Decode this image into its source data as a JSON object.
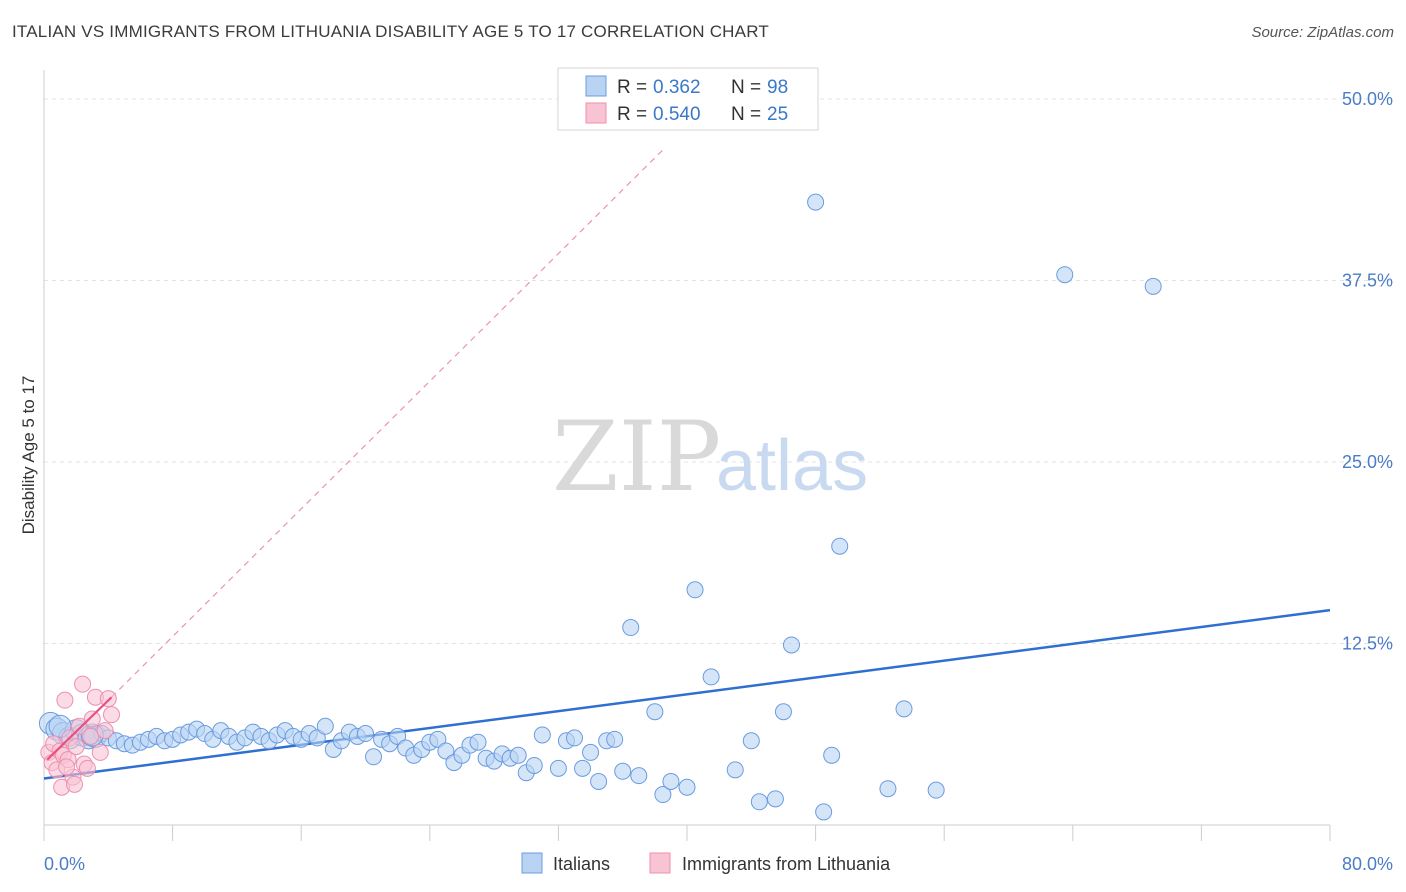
{
  "header": {
    "title": "ITALIAN VS IMMIGRANTS FROM LITHUANIA DISABILITY AGE 5 TO 17 CORRELATION CHART",
    "source": "Source: ZipAtlas.com"
  },
  "watermark": {
    "zip": "ZIP",
    "atlas": "atlas"
  },
  "legend": {
    "rows": [
      {
        "r_label": "R = ",
        "r_value": "0.362",
        "n_label": "N = ",
        "n_value": "98"
      },
      {
        "r_label": "R = ",
        "r_value": "0.540",
        "n_label": "N = ",
        "n_value": "25"
      }
    ]
  },
  "colors": {
    "blue_fill": "#b9d3f3",
    "blue_stroke": "#6a9be0",
    "blue_line": "#2f6fd0",
    "pink_fill": "#f8c3d3",
    "pink_stroke": "#ee8fae",
    "pink_line": "#e8507e",
    "tick_text": "#4a7cc7",
    "grid": "#e3e3e3"
  },
  "chart_data": {
    "type": "scatter",
    "title": "ITALIAN VS IMMIGRANTS FROM LITHUANIA DISABILITY AGE 5 TO 17 CORRELATION CHART",
    "xlabel": "",
    "ylabel": "Disability Age 5 to 17",
    "xlim": [
      0,
      80
    ],
    "ylim": [
      0,
      52
    ],
    "x_tick_labels": [
      "0.0%",
      "80.0%"
    ],
    "y_ticks": [
      12.5,
      25.0,
      37.5,
      50.0
    ],
    "y_tick_labels": [
      "12.5%",
      "25.0%",
      "37.5%",
      "50.0%"
    ],
    "grid": true,
    "legend_position": "top-center",
    "series": [
      {
        "name": "Italians",
        "color": "#b9d3f3",
        "trend": {
          "x": [
            0,
            80
          ],
          "y": [
            3.2,
            14.8
          ]
        },
        "points": [
          [
            0.4,
            7.0
          ],
          [
            0.8,
            6.6
          ],
          [
            1.2,
            6.3
          ],
          [
            1.6,
            6.0
          ],
          [
            2.0,
            6.5
          ],
          [
            2.4,
            6.2
          ],
          [
            2.8,
            6.0
          ],
          [
            3.2,
            6.1
          ],
          [
            3.6,
            6.3
          ],
          [
            4.0,
            6.0
          ],
          [
            4.5,
            5.8
          ],
          [
            5.0,
            5.6
          ],
          [
            5.5,
            5.5
          ],
          [
            6.0,
            5.7
          ],
          [
            6.5,
            5.9
          ],
          [
            7.0,
            6.1
          ],
          [
            7.5,
            5.8
          ],
          [
            8.0,
            5.9
          ],
          [
            8.5,
            6.2
          ],
          [
            9.0,
            6.4
          ],
          [
            9.5,
            6.6
          ],
          [
            10.0,
            6.3
          ],
          [
            10.5,
            5.9
          ],
          [
            11.0,
            6.5
          ],
          [
            11.5,
            6.1
          ],
          [
            12.0,
            5.7
          ],
          [
            12.5,
            6.0
          ],
          [
            13.0,
            6.4
          ],
          [
            13.5,
            6.1
          ],
          [
            14.0,
            5.8
          ],
          [
            14.5,
            6.2
          ],
          [
            15.0,
            6.5
          ],
          [
            15.5,
            6.1
          ],
          [
            16.0,
            5.9
          ],
          [
            16.5,
            6.3
          ],
          [
            17.0,
            6.0
          ],
          [
            17.5,
            6.8
          ],
          [
            18.0,
            5.2
          ],
          [
            18.5,
            5.8
          ],
          [
            19.0,
            6.4
          ],
          [
            19.5,
            6.1
          ],
          [
            20.0,
            6.3
          ],
          [
            20.5,
            4.7
          ],
          [
            21.0,
            5.9
          ],
          [
            21.5,
            5.6
          ],
          [
            22.0,
            6.1
          ],
          [
            22.5,
            5.3
          ],
          [
            23.0,
            4.8
          ],
          [
            23.5,
            5.2
          ],
          [
            24.0,
            5.7
          ],
          [
            24.5,
            5.9
          ],
          [
            25.0,
            5.1
          ],
          [
            25.5,
            4.3
          ],
          [
            26.0,
            4.8
          ],
          [
            26.5,
            5.5
          ],
          [
            27.0,
            5.7
          ],
          [
            27.5,
            4.6
          ],
          [
            28.0,
            4.4
          ],
          [
            28.5,
            4.9
          ],
          [
            29.0,
            4.6
          ],
          [
            29.5,
            4.8
          ],
          [
            30.0,
            3.6
          ],
          [
            30.5,
            4.1
          ],
          [
            31.0,
            6.2
          ],
          [
            32.0,
            3.9
          ],
          [
            32.5,
            5.8
          ],
          [
            33.0,
            6.0
          ],
          [
            33.5,
            3.9
          ],
          [
            34.0,
            5.0
          ],
          [
            34.5,
            3.0
          ],
          [
            35.0,
            5.8
          ],
          [
            35.5,
            5.9
          ],
          [
            36.0,
            3.7
          ],
          [
            36.5,
            13.6
          ],
          [
            37.0,
            3.4
          ],
          [
            38.0,
            7.8
          ],
          [
            38.5,
            2.1
          ],
          [
            39.0,
            3.0
          ],
          [
            40.0,
            2.6
          ],
          [
            40.5,
            16.2
          ],
          [
            41.5,
            10.2
          ],
          [
            43.0,
            3.8
          ],
          [
            44.0,
            5.8
          ],
          [
            44.5,
            1.6
          ],
          [
            45.5,
            1.8
          ],
          [
            46.0,
            7.8
          ],
          [
            46.5,
            12.4
          ],
          [
            48.0,
            42.9
          ],
          [
            48.5,
            0.9
          ],
          [
            49.0,
            4.8
          ],
          [
            49.5,
            19.2
          ],
          [
            52.5,
            2.5
          ],
          [
            53.5,
            8.0
          ],
          [
            55.5,
            2.4
          ],
          [
            63.5,
            37.9
          ],
          [
            69.0,
            37.1
          ],
          [
            1.0,
            6.8
          ],
          [
            3.0,
            6.2
          ]
        ]
      },
      {
        "name": "Immigrants from Lithuania",
        "color": "#f8c3d3",
        "trend": {
          "x": [
            0.2,
            4.2
          ],
          "y": [
            4.5,
            8.8
          ]
        },
        "trend_extended": {
          "x": [
            4.2,
            38.5
          ],
          "y": [
            8.8,
            46.5
          ]
        },
        "points": [
          [
            0.3,
            5.0
          ],
          [
            0.5,
            4.3
          ],
          [
            0.6,
            5.6
          ],
          [
            0.8,
            3.8
          ],
          [
            1.0,
            5.1
          ],
          [
            1.1,
            2.6
          ],
          [
            1.2,
            4.8
          ],
          [
            1.3,
            8.6
          ],
          [
            1.5,
            4.5
          ],
          [
            1.6,
            6.0
          ],
          [
            1.8,
            3.3
          ],
          [
            1.9,
            2.8
          ],
          [
            2.0,
            5.4
          ],
          [
            2.2,
            6.8
          ],
          [
            2.4,
            9.7
          ],
          [
            2.5,
            4.2
          ],
          [
            2.7,
            3.9
          ],
          [
            2.9,
            6.1
          ],
          [
            3.0,
            7.3
          ],
          [
            3.2,
            8.8
          ],
          [
            3.5,
            5.0
          ],
          [
            3.8,
            6.5
          ],
          [
            4.0,
            8.7
          ],
          [
            4.2,
            7.6
          ],
          [
            1.4,
            4.0
          ]
        ]
      }
    ]
  },
  "bottom_legend": [
    {
      "label": "Italians"
    },
    {
      "label": "Immigrants from Lithuania"
    }
  ]
}
